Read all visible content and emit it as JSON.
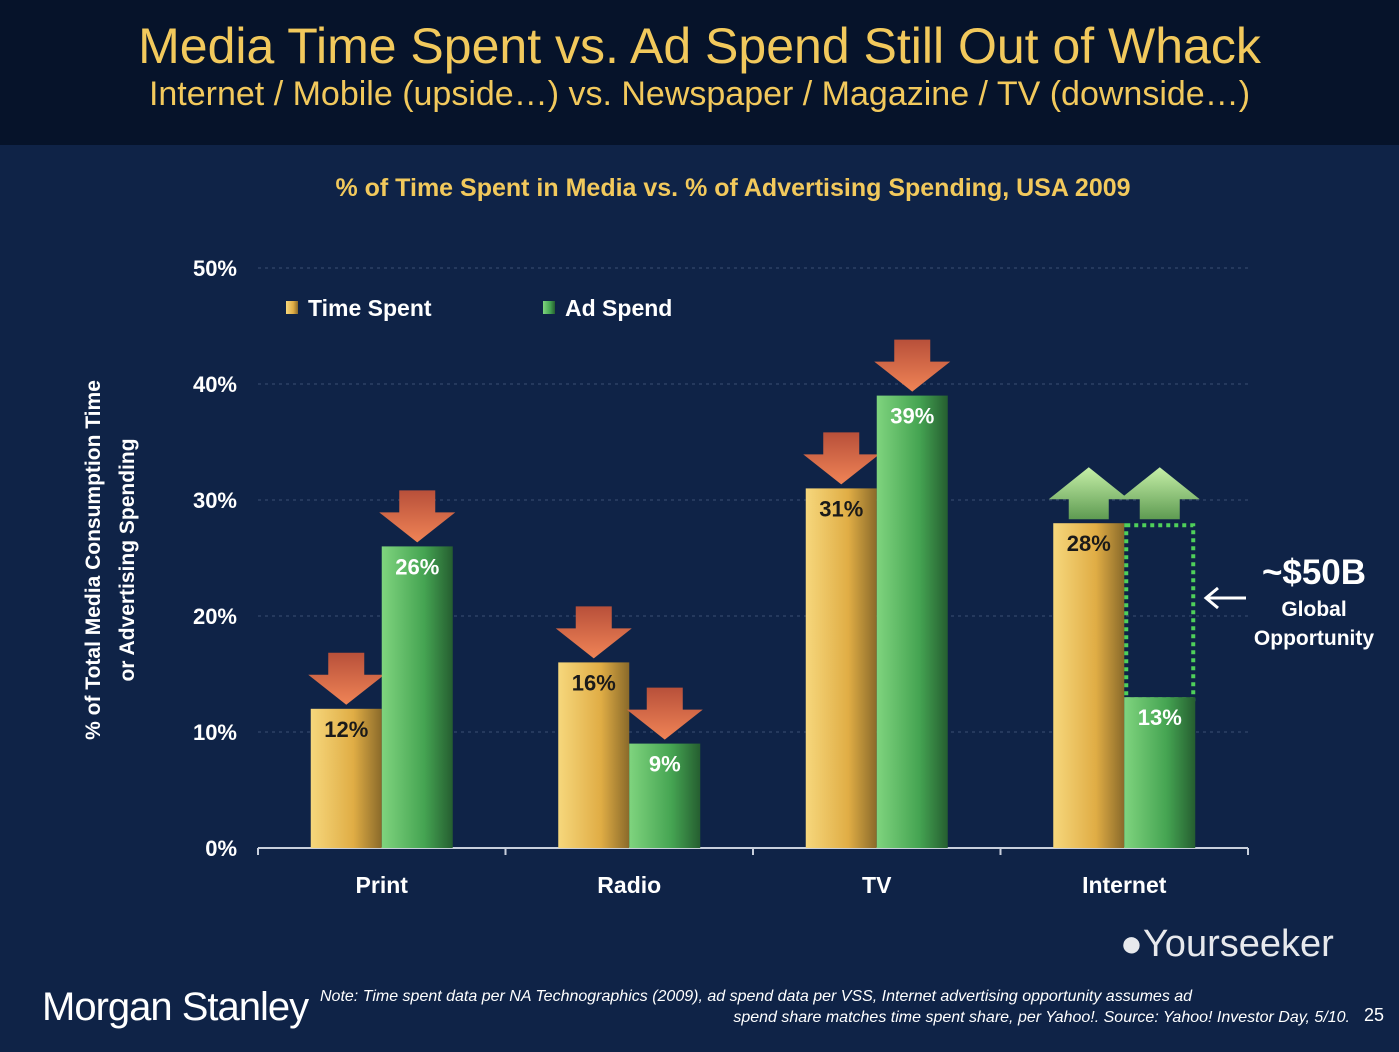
{
  "header": {
    "title": "Media Time Spent vs. Ad Spend Still Out of Whack",
    "subtitle": "Internet / Mobile (upside…) vs. Newspaper / Magazine / TV (downside…)"
  },
  "chart_data": {
    "type": "bar",
    "title": "% of Time Spent in Media vs. % of Advertising Spending, USA 2009",
    "ylabel": "% of Total Media Consumption Time or Advertising Spending",
    "ylabel_lines": [
      "% of Total Media Consumption Time",
      "or Advertising Spending"
    ],
    "xlabel": "",
    "ylim": [
      0,
      50
    ],
    "yticks": [
      "0%",
      "10%",
      "20%",
      "30%",
      "40%",
      "50%"
    ],
    "grid": true,
    "legend": "top-left",
    "categories": [
      "Print",
      "Radio",
      "TV",
      "Internet"
    ],
    "series": [
      {
        "name": "Time Spent",
        "values": [
          12,
          16,
          31,
          28
        ],
        "labels": [
          "12%",
          "16%",
          "31%",
          "28%"
        ],
        "color": "#e8b94f",
        "arrows": [
          "down",
          "down",
          "down",
          "up"
        ]
      },
      {
        "name": "Ad Spend",
        "values": [
          26,
          9,
          39,
          13
        ],
        "labels": [
          "26%",
          "9%",
          "39%",
          "13%"
        ],
        "color": "#4fae5a",
        "arrows": [
          "down",
          "down",
          "down",
          "up"
        ]
      }
    ],
    "annotation": {
      "value": "~$50B",
      "line1": "Global",
      "line2": "Opportunity",
      "gap_to": 28
    }
  },
  "footer": {
    "logo": "Morgan Stanley",
    "note_line1": "Note: Time spent data per NA Technographics (2009), ad spend data per VSS, Internet advertising opportunity assumes ad",
    "note_line2": "spend share matches time spent share, per Yahoo!. Source: Yahoo! Investor Day, 5/10.",
    "page": "25",
    "watermark": "Yourseeker"
  },
  "colors": {
    "title": "#f2c95c",
    "arrow_down": "#e8704a",
    "arrow_up": "#9fd88a"
  }
}
